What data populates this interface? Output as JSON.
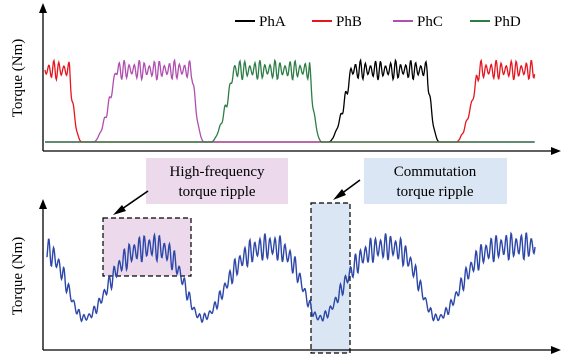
{
  "chart_data": [
    {
      "type": "line",
      "ylabel": "Torque (Nm)",
      "xlabel": "",
      "legend": [
        "PhA",
        "PhB",
        "PhC",
        "PhD"
      ],
      "legend_position": "top-right",
      "colors": {
        "PhA": "#000000",
        "PhB": "#e8141e",
        "PhC": "#b04fb0",
        "PhD": "#2e7d46"
      },
      "series": [
        {
          "name": "PhA",
          "on_intervals": [
            [
              0.58,
              0.78
            ]
          ]
        },
        {
          "name": "PhB",
          "on_intervals": [
            [
              0.0,
              0.05
            ],
            [
              0.84,
              1.0
            ]
          ]
        },
        {
          "name": "PhC",
          "on_intervals": [
            [
              0.1,
              0.3
            ]
          ]
        },
        {
          "name": "PhD",
          "on_intervals": [
            [
              0.34,
              0.54
            ]
          ]
        }
      ],
      "grid": false
    },
    {
      "type": "line",
      "ylabel": "Torque (Nm)",
      "xlabel": "",
      "series_color": "#2c47a8",
      "commutation_dips": [
        0.08,
        0.32,
        0.56,
        0.8
      ],
      "annotations": [
        {
          "text_lines": [
            "High-frequency",
            "torque ripple"
          ],
          "fill": "#ecd9ec"
        },
        {
          "text_lines": [
            "Commutation",
            "torque ripple"
          ],
          "fill": "#dbe6f4"
        }
      ],
      "grid": false
    }
  ]
}
